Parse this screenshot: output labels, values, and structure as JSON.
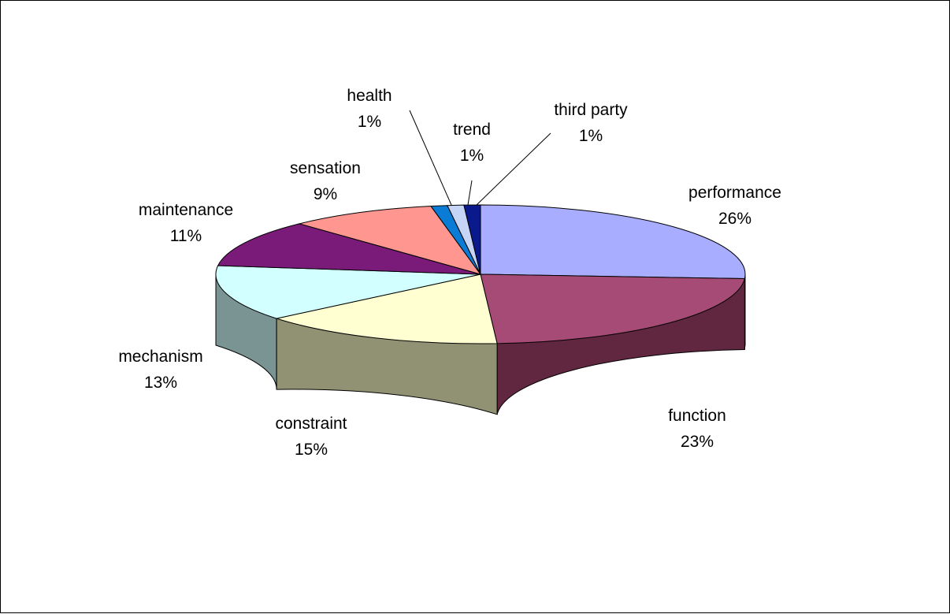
{
  "chart_data": {
    "type": "pie",
    "three_d": true,
    "title": "",
    "start_angle_deg": 90,
    "direction": "clockwise",
    "legend": "none",
    "slices": [
      {
        "name": "performance",
        "label": "performance",
        "pct_label": "26%",
        "value": 26,
        "color": "#A9ADFF",
        "side_color": "#5C5E99"
      },
      {
        "name": "function",
        "label": "function",
        "pct_label": "23%",
        "value": 23,
        "color": "#A64B76",
        "side_color": "#612640"
      },
      {
        "name": "constraint",
        "label": "constraint",
        "pct_label": "15%",
        "value": 15,
        "color": "#FFFFD2",
        "side_color": "#919174"
      },
      {
        "name": "mechanism",
        "label": "mechanism",
        "pct_label": "13%",
        "value": 13,
        "color": "#D2FFFF",
        "side_color": "#7A9494"
      },
      {
        "name": "maintenance",
        "label": "maintenance",
        "pct_label": "11%",
        "value": 11,
        "color": "#7B1B79",
        "side_color": "#4A0F49"
      },
      {
        "name": "sensation",
        "label": "sensation",
        "pct_label": "9%",
        "value": 9,
        "color": "#FF9690",
        "side_color": "#995A56"
      },
      {
        "name": "health",
        "label": "health",
        "pct_label": "1%",
        "value": 1,
        "color": "#0B7CD6",
        "side_color": "#074A80"
      },
      {
        "name": "trend",
        "label": "trend",
        "pct_label": "1%",
        "value": 1,
        "color": "#C6D4F5",
        "side_color": "#77808F"
      },
      {
        "name": "third party",
        "label": "third party",
        "pct_label": "1%",
        "value": 1,
        "color": "#0A1A8C",
        "side_color": "#050D4A"
      }
    ]
  }
}
